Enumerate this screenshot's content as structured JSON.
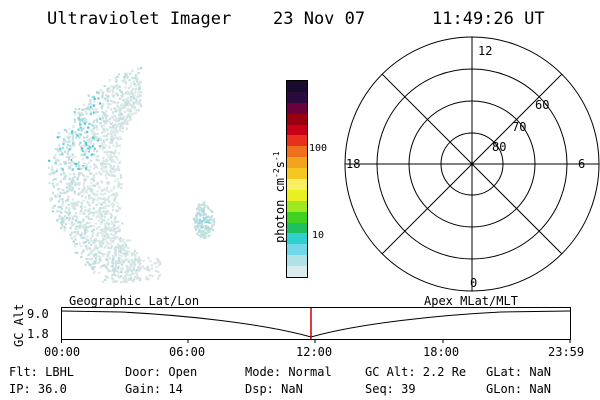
{
  "header": {
    "title": "Ultraviolet Imager",
    "date": "23 Nov 07",
    "time": "11:49:26 UT"
  },
  "colorbar": {
    "unit_label": "photon cm",
    "unit_exp1": "-2",
    "unit_s": "s",
    "unit_exp2": "-1",
    "tick_100": "100",
    "tick_10": "10",
    "colors": [
      "#1a0a2e",
      "#2b0a3d",
      "#6a003c",
      "#9a0010",
      "#c80018",
      "#e8301a",
      "#f07020",
      "#f4a320",
      "#f4c820",
      "#f8f060",
      "#e8f020",
      "#a0e820",
      "#40d020",
      "#20c060",
      "#30d0d0",
      "#70d8e8",
      "#b0e0e8",
      "#d8ecee"
    ]
  },
  "polar": {
    "mlt_top": "12",
    "mlt_left": "18",
    "mlt_right": "6",
    "mlt_bottom": "0",
    "lat_60": "60",
    "lat_70": "70",
    "lat_80": "80"
  },
  "timeline": {
    "left_label": "Geographic Lat/Lon",
    "right_label": "Apex MLat/MLT",
    "y_axis_label": "GC Alt",
    "y_ticks": [
      "9.0",
      "1.8"
    ],
    "x_ticks": [
      "00:00",
      "06:00",
      "12:00",
      "18:00",
      "23:59"
    ],
    "marker_color": "#cc0000"
  },
  "info": {
    "filter": "Flt: LBHL",
    "ip": "IP: 36.0",
    "door": "Door: Open",
    "gain": "Gain: 14",
    "mode": "Mode: Normal",
    "dsp": "Dsp:     NaN",
    "gcalt": "GC Alt: 2.2 Re",
    "seq": "Seq: 39",
    "glat": "GLat:    NaN",
    "glon": "GLon:    NaN"
  }
}
